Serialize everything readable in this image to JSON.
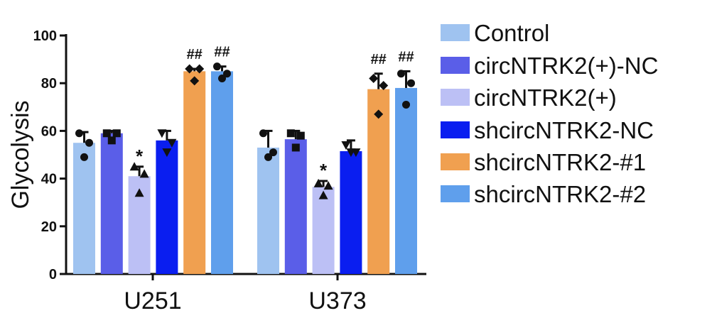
{
  "chart_data": {
    "type": "bar",
    "title": "",
    "xlabel": "",
    "ylabel": "Glycolysis",
    "ylim": [
      0,
      100
    ],
    "yticks": [
      0,
      20,
      40,
      60,
      80,
      100
    ],
    "grid": false,
    "legend_position": "right",
    "categories": [
      "U251",
      "U373"
    ],
    "series": [
      {
        "name": "Control",
        "color": "#9fc3f0",
        "marker": "circle",
        "values": [
          55,
          53
        ],
        "err_upper": [
          59.5,
          60
        ],
        "points": [
          [
            59,
            55,
            49
          ],
          [
            59,
            51,
            49
          ]
        ],
        "annotations": [
          "",
          ""
        ]
      },
      {
        "name": "circNTRK2(+)-NC",
        "color": "#5a5ee8",
        "marker": "square",
        "values": [
          59,
          56.5
        ],
        "err_upper": [
          60,
          60
        ],
        "points": [
          [
            59,
            59,
            56
          ],
          [
            59,
            58,
            53
          ]
        ],
        "annotations": [
          "",
          ""
        ]
      },
      {
        "name": "circNTRK2(+)",
        "color": "#bcc0f5",
        "marker": "triangle-up",
        "values": [
          41,
          36.5
        ],
        "err_upper": [
          45,
          39
        ],
        "points": [
          [
            45,
            42,
            34
          ],
          [
            38,
            37,
            33
          ]
        ],
        "annotations": [
          "*",
          "*"
        ]
      },
      {
        "name": "shcircNTRK2-NC",
        "color": "#0a1ef0",
        "marker": "triangle-down",
        "values": [
          56,
          51.5
        ],
        "err_upper": [
          60,
          56
        ],
        "points": [
          [
            59,
            55,
            51
          ],
          [
            54,
            51,
            51
          ]
        ],
        "annotations": [
          "",
          ""
        ]
      },
      {
        "name": "shcircNTRK2-#1",
        "color": "#f0a050",
        "marker": "diamond",
        "values": [
          85,
          77.5
        ],
        "err_upper": [
          86,
          84
        ],
        "points": [
          [
            86,
            86,
            81
          ],
          [
            82,
            79,
            67
          ]
        ],
        "annotations": [
          "##",
          "##"
        ]
      },
      {
        "name": "shcircNTRK2-#2",
        "color": "#5f9fec",
        "marker": "circle",
        "values": [
          85,
          78
        ],
        "err_upper": [
          87,
          85
        ],
        "points": [
          [
            87,
            84,
            82
          ],
          [
            84,
            80,
            71
          ]
        ],
        "annotations": [
          "##",
          "##"
        ]
      }
    ]
  }
}
